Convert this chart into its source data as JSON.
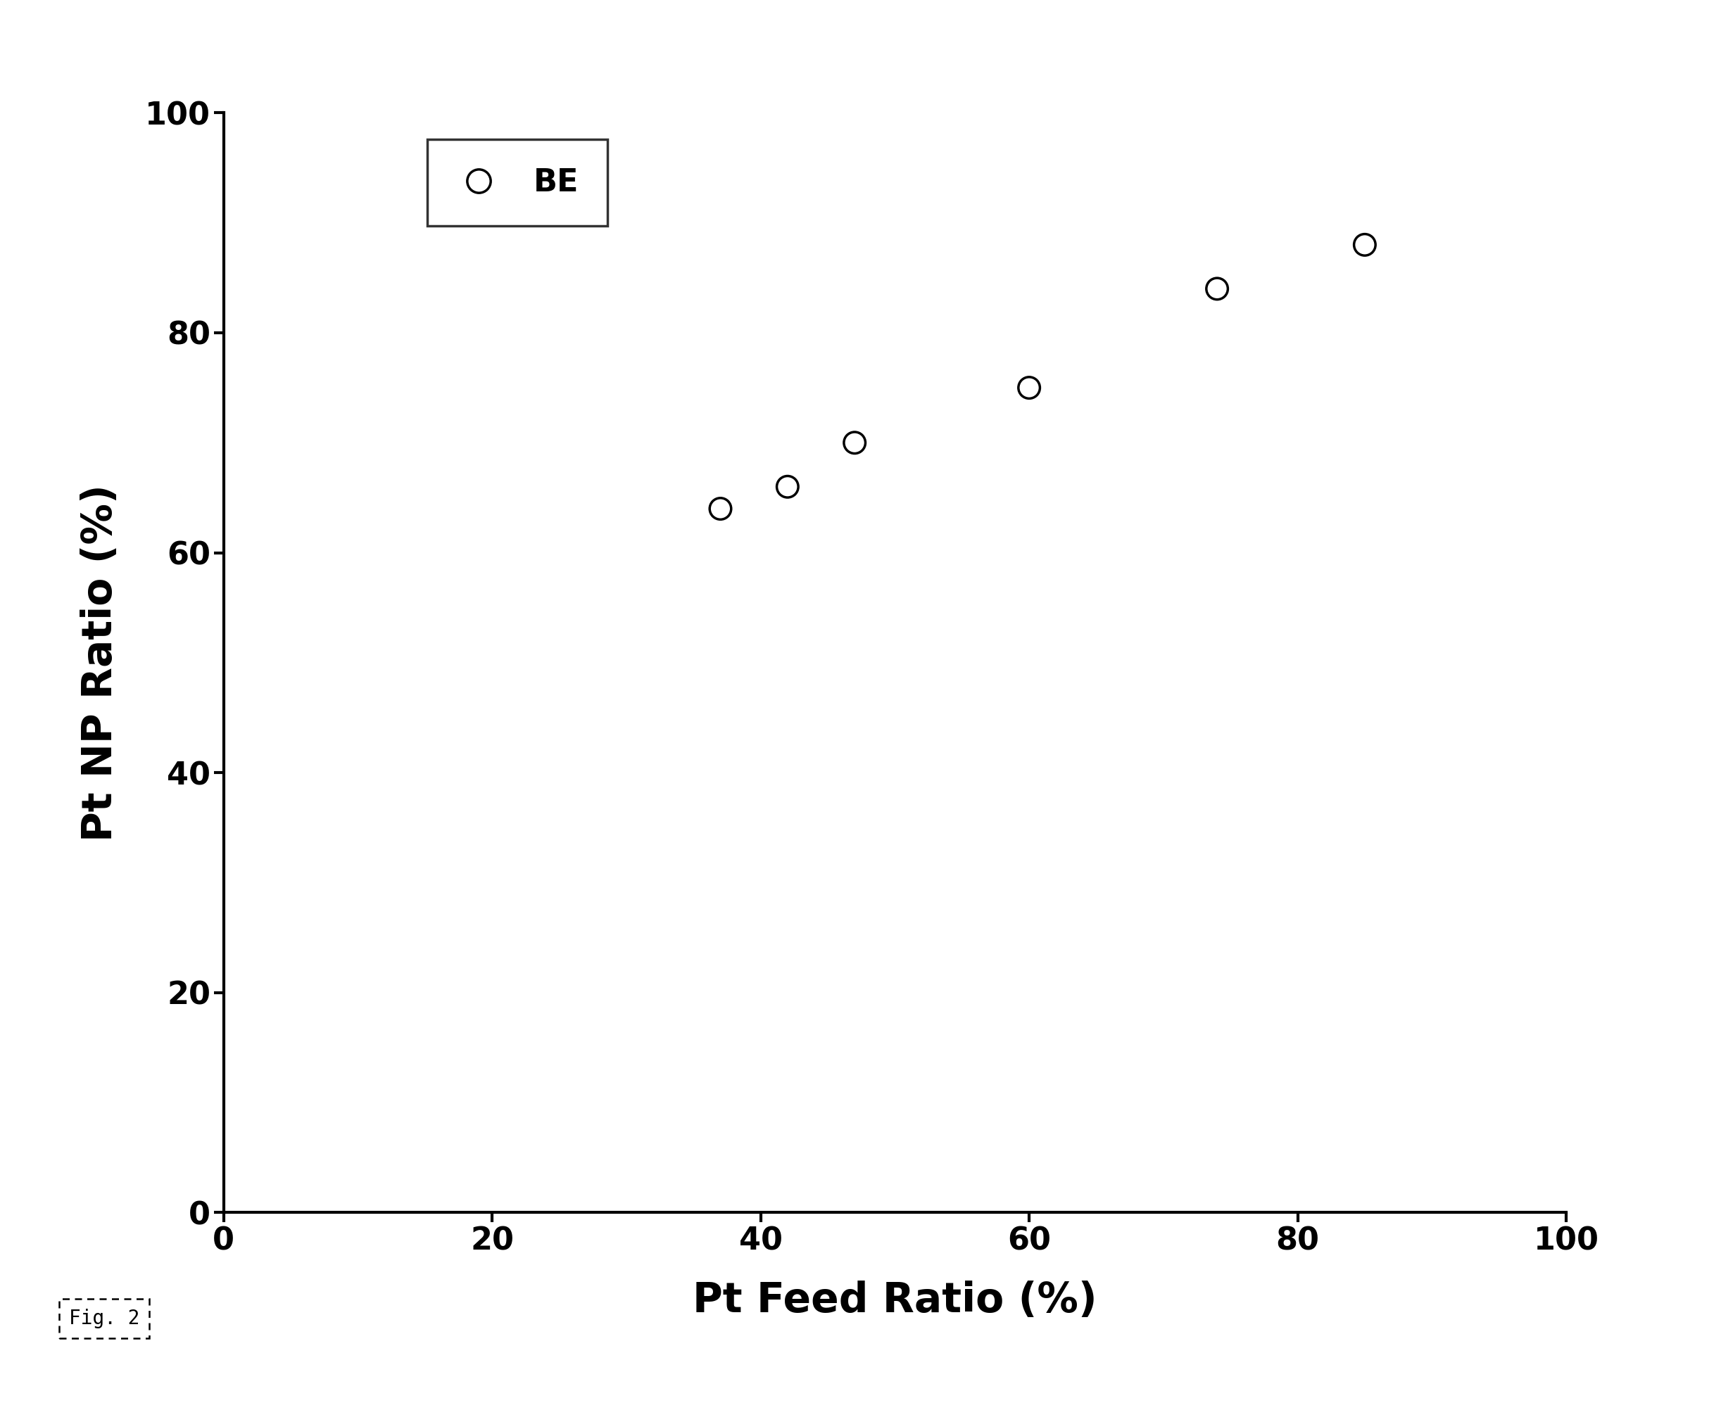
{
  "x_data": [
    37,
    42,
    47,
    60,
    74,
    85
  ],
  "y_data": [
    64,
    66,
    70,
    75,
    84,
    88
  ],
  "xlabel": "Pt Feed Ratio (%)",
  "ylabel": "Pt NP Ratio (%)",
  "xlim": [
    0,
    100
  ],
  "ylim": [
    0,
    100
  ],
  "xticks": [
    0,
    20,
    40,
    60,
    80,
    100
  ],
  "yticks": [
    0,
    20,
    40,
    60,
    80,
    100
  ],
  "legend_label": "BE",
  "fig_label": "Fig. 2",
  "background_color": "#ffffff",
  "marker_color": "#000000",
  "marker_size": 22,
  "marker_linewidth": 2.5,
  "axis_linewidth": 3.0,
  "tick_fontsize": 32,
  "label_fontsize": 42,
  "legend_fontsize": 32,
  "fig_label_fontsize": 20
}
